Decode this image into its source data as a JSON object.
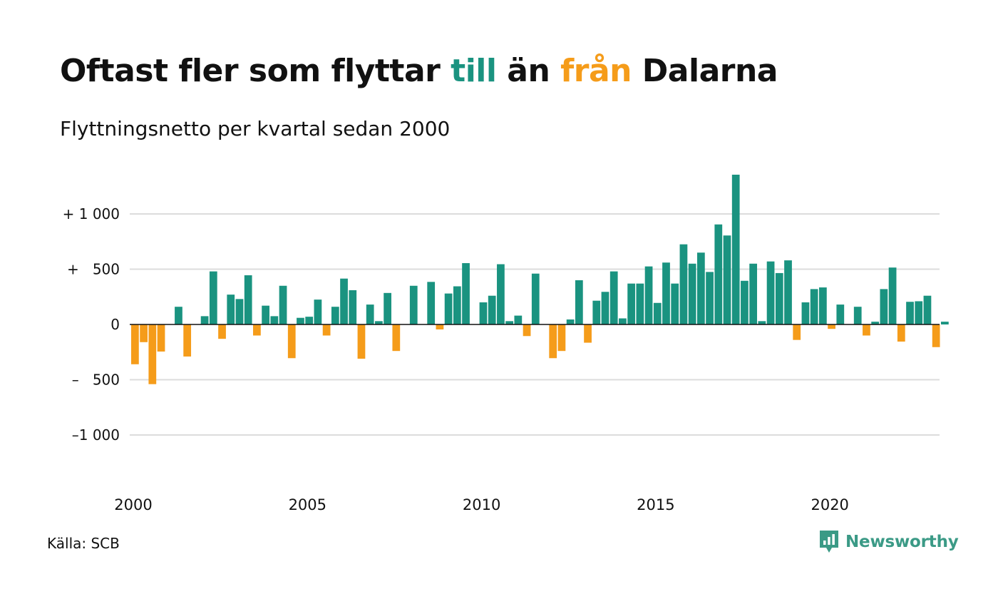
{
  "title": {
    "part1": "Oftast fler som flyttar ",
    "till": "till",
    "part2": " än ",
    "fran": "från",
    "part3": " Dalarna"
  },
  "subtitle": "Flyttningsnetto per kvartal sedan 2000",
  "source": "Källa: SCB",
  "logo": {
    "text": "Newsworthy",
    "icon": "newsworthy-chat-icon"
  },
  "colors": {
    "positive": "#1a9380",
    "negative": "#f59c1a",
    "grid": "#dcdcdc",
    "brand": "#3b9a86"
  },
  "chart_data": {
    "type": "bar",
    "x_start_year": 2000,
    "x_end_year": 2023.25,
    "ylim": [
      -1450,
      1450
    ],
    "yticks": [
      1000,
      500,
      0,
      -500,
      -1000
    ],
    "ytick_labels": [
      "+ 1 000",
      "+   500",
      "0",
      "–   500",
      "–1 000"
    ],
    "xticks": [
      2000,
      2005,
      2010,
      2015,
      2020
    ],
    "xtick_labels": [
      "2000",
      "2005",
      "2010",
      "2015",
      "2020"
    ],
    "grid": true,
    "legend": "none",
    "values": [
      -360,
      -160,
      -540,
      -245,
      0,
      160,
      -290,
      0,
      75,
      480,
      -130,
      270,
      230,
      445,
      -100,
      170,
      75,
      350,
      -305,
      60,
      70,
      225,
      -100,
      160,
      415,
      310,
      -310,
      180,
      30,
      285,
      -240,
      0,
      350,
      0,
      385,
      -45,
      280,
      345,
      555,
      0,
      200,
      260,
      545,
      30,
      80,
      -105,
      460,
      0,
      -305,
      -240,
      45,
      400,
      -165,
      215,
      295,
      480,
      55,
      370,
      370,
      525,
      195,
      560,
      370,
      725,
      550,
      650,
      475,
      905,
      805,
      1355,
      395,
      550,
      30,
      570,
      465,
      580,
      -140,
      200,
      320,
      335,
      -40,
      180,
      0,
      160,
      -100,
      25,
      320,
      515,
      -155,
      205,
      210,
      260,
      -205,
      25
    ]
  }
}
